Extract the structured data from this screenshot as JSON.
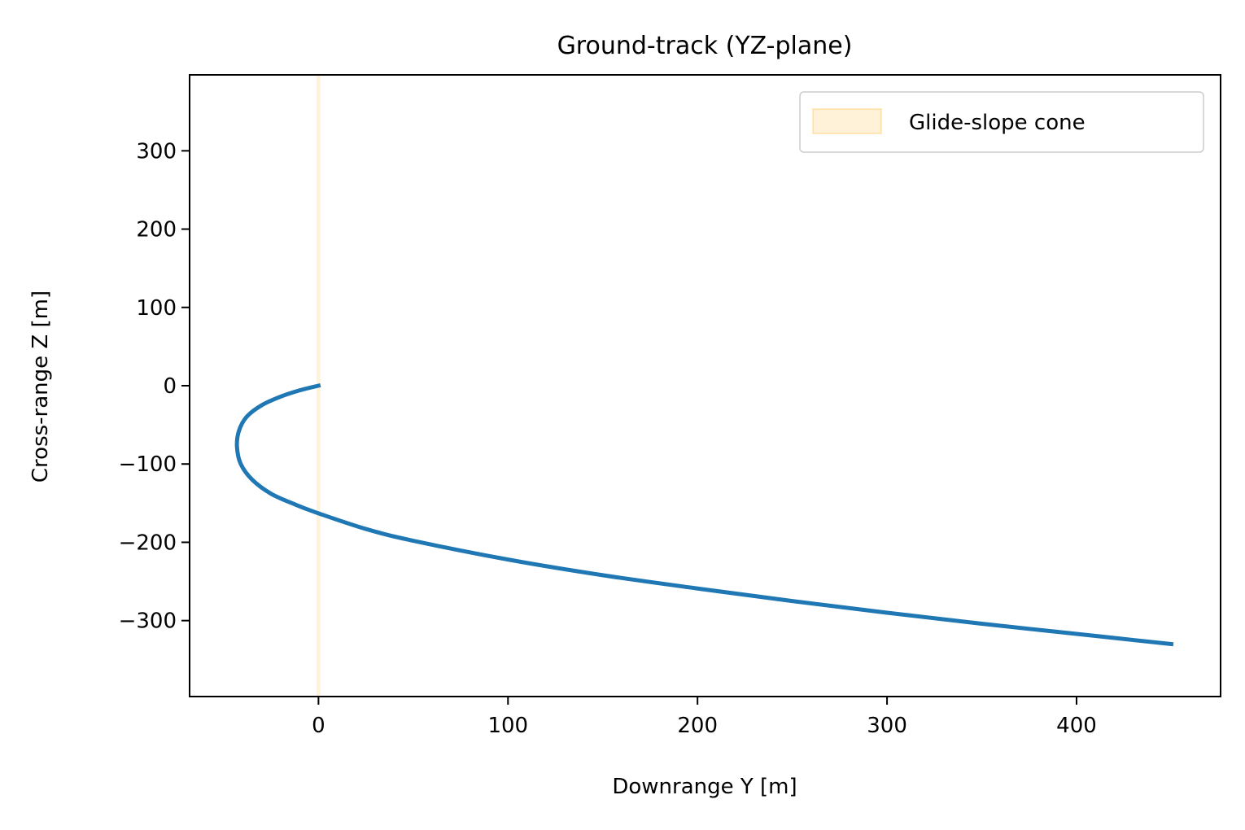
{
  "chart_data": {
    "type": "line",
    "title": "Ground-track (YZ-plane)",
    "xlabel": "Downrange Y [m]",
    "ylabel": "Cross-range Z [m]",
    "xlim": [
      -68,
      476
    ],
    "ylim": [
      -397,
      397
    ],
    "xticks": [
      0,
      100,
      200,
      300,
      400
    ],
    "yticks": [
      300,
      200,
      100,
      0,
      -100,
      -200,
      -300
    ],
    "xtick_labels": [
      "0",
      "100",
      "200",
      "300",
      "400"
    ],
    "ytick_labels": [
      "300",
      "200",
      "100",
      "0",
      "−100",
      "−200",
      "−300"
    ],
    "grid": false,
    "legend_position": "top-right",
    "cone": {
      "name": "Glide-slope cone",
      "x_range": [
        -1,
        1
      ],
      "color": "#ffa500",
      "fill_opacity": 0.15
    },
    "series": [
      {
        "color": "#1f77b4",
        "x": [
          0,
          -10,
          -20,
          -30,
          -38,
          -42,
          -43,
          -41,
          -35,
          -25,
          -12,
          0,
          25,
          50,
          100,
          150,
          200,
          250,
          300,
          350,
          400,
          450
        ],
        "y": [
          0,
          -6,
          -14,
          -25,
          -40,
          -58,
          -78,
          -100,
          -120,
          -138,
          -152,
          -163,
          -183,
          -198,
          -222,
          -242,
          -259,
          -275,
          -290,
          -304,
          -317,
          -330
        ]
      }
    ]
  }
}
